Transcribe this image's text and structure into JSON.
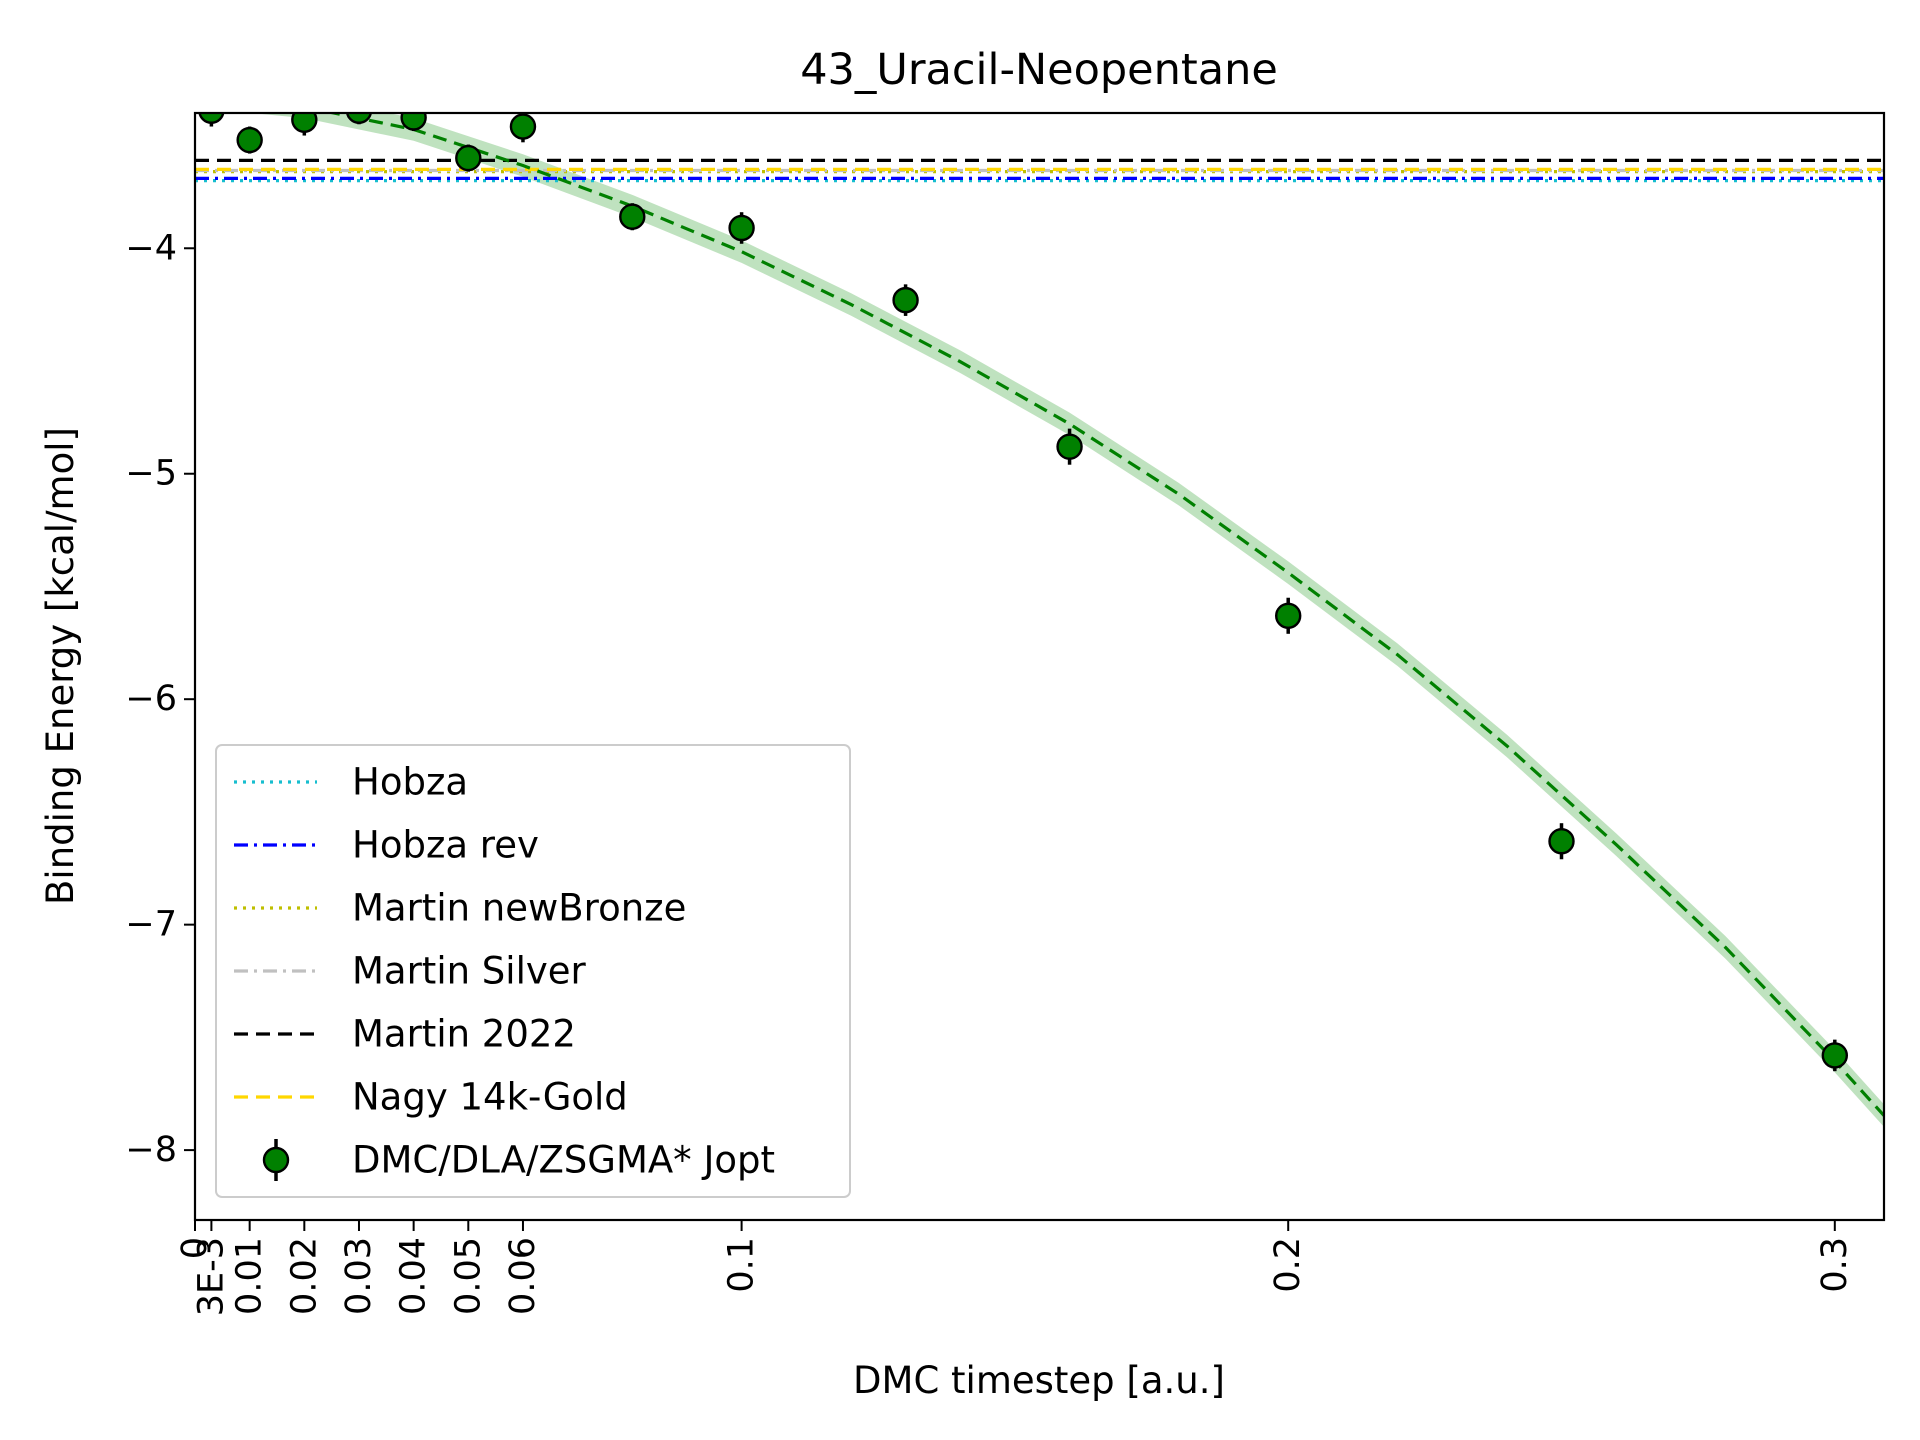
{
  "chart_data": {
    "type": "scatter",
    "title": "43_Uracil-Neopentane",
    "xlabel": "DMC timestep [a.u.]",
    "ylabel": "Binding Energy [kcal/mol]",
    "xlim": [
      0,
      0.309
    ],
    "ylim": [
      -8.31,
      -3.4
    ],
    "x_ticks": [
      {
        "value": 0,
        "label": "0"
      },
      {
        "value": 0.003,
        "label": "3E-3"
      },
      {
        "value": 0.01,
        "label": "0.01"
      },
      {
        "value": 0.02,
        "label": "0.02"
      },
      {
        "value": 0.03,
        "label": "0.03"
      },
      {
        "value": 0.04,
        "label": "0.04"
      },
      {
        "value": 0.05,
        "label": "0.05"
      },
      {
        "value": 0.06,
        "label": "0.06"
      },
      {
        "value": 0.1,
        "label": "0.1"
      },
      {
        "value": 0.2,
        "label": "0.2"
      },
      {
        "value": 0.3,
        "label": "0.3"
      }
    ],
    "y_ticks": [
      {
        "value": -4,
        "label": "−4"
      },
      {
        "value": -5,
        "label": "−5"
      },
      {
        "value": -6,
        "label": "−6"
      },
      {
        "value": -7,
        "label": "−7"
      },
      {
        "value": -8,
        "label": "−8"
      }
    ],
    "reference_lines": [
      {
        "name": "Hobza",
        "y": -3.7,
        "color": "#17becf",
        "style": "dotted"
      },
      {
        "name": "Hobza rev",
        "y": -3.69,
        "color": "#0000ff",
        "style": "dashdot"
      },
      {
        "name": "Martin newBronze",
        "y": -3.66,
        "color": "#bfbf00",
        "style": "dotted"
      },
      {
        "name": "Martin Silver",
        "y": -3.655,
        "color": "#c0c0c0",
        "style": "dashdot"
      },
      {
        "name": "Martin 2022",
        "y": -3.61,
        "color": "#000000",
        "style": "dashed"
      },
      {
        "name": "Nagy 14k-Gold",
        "y": -3.65,
        "color": "#ffd700",
        "style": "dashed"
      }
    ],
    "series": [
      {
        "name": "DMC/DLA/ZSGMA* Jopt",
        "color": "#008000",
        "points": [
          {
            "x": 0.003,
            "y": -3.39,
            "err": 0.07
          },
          {
            "x": 0.01,
            "y": -3.52,
            "err": 0.06
          },
          {
            "x": 0.02,
            "y": -3.43,
            "err": 0.07
          },
          {
            "x": 0.03,
            "y": -3.39,
            "err": 0.06
          },
          {
            "x": 0.04,
            "y": -3.42,
            "err": 0.06
          },
          {
            "x": 0.05,
            "y": -3.6,
            "err": 0.06
          },
          {
            "x": 0.06,
            "y": -3.46,
            "err": 0.07
          },
          {
            "x": 0.08,
            "y": -3.86,
            "err": 0.06
          },
          {
            "x": 0.1,
            "y": -3.91,
            "err": 0.07
          },
          {
            "x": 0.13,
            "y": -4.23,
            "err": 0.07
          },
          {
            "x": 0.16,
            "y": -4.88,
            "err": 0.08
          },
          {
            "x": 0.2,
            "y": -5.63,
            "err": 0.08
          },
          {
            "x": 0.25,
            "y": -6.63,
            "err": 0.08
          },
          {
            "x": 0.3,
            "y": -7.58,
            "err": 0.07
          }
        ]
      }
    ],
    "fit": {
      "color": "#008000",
      "band_color": "#2ca02c",
      "x": [
        0,
        0.02,
        0.04,
        0.06,
        0.08,
        0.1,
        0.12,
        0.14,
        0.16,
        0.18,
        0.2,
        0.22,
        0.24,
        0.26,
        0.28,
        0.3,
        0.309
      ],
      "y": [
        -3.325,
        -3.373,
        -3.473,
        -3.633,
        -3.813,
        -4.015,
        -4.249,
        -4.503,
        -4.779,
        -5.091,
        -5.439,
        -5.803,
        -6.207,
        -6.645,
        -7.101,
        -7.605,
        -7.847
      ],
      "band_halfwidth": 0.05
    },
    "legend": {
      "placement": "lower-left",
      "entries": [
        "Hobza",
        "Hobza rev",
        "Martin newBronze",
        "Martin Silver",
        "Martin 2022",
        "Nagy 14k-Gold",
        "DMC/DLA/ZSGMA* Jopt"
      ]
    },
    "grid": false
  }
}
